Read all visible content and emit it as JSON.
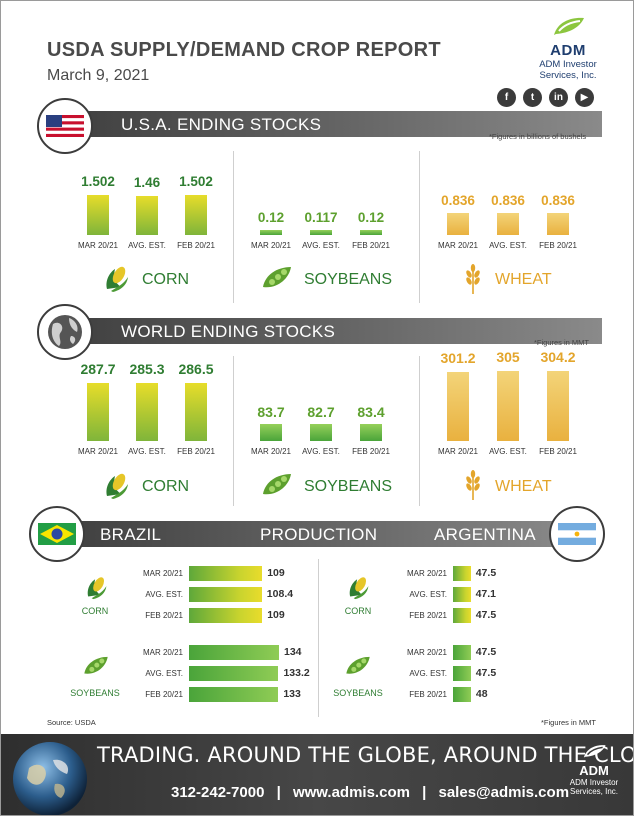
{
  "header": {
    "title": "USDA SUPPLY/DEMAND CROP REPORT",
    "date": "March 9, 2021",
    "logo_name": "ADM",
    "logo_sub_1": "ADM Investor",
    "logo_sub_2": "Services, Inc.",
    "social_icons": [
      "facebook-icon",
      "twitter-icon",
      "linkedin-icon",
      "youtube-icon"
    ],
    "social_letters": [
      "f",
      "t",
      "in",
      "▶"
    ]
  },
  "colors": {
    "corn": "#2f7d32",
    "soybeans": "#5da02e",
    "wheat": "#e3a52b",
    "banner": "#4a4a4a",
    "footer": "#3a3a3a"
  },
  "us_section": {
    "title": "U.S.A. ENDING STOCKS",
    "note": "*Figures in billions of bushels"
  },
  "world_section": {
    "title": "WORLD ENDING STOCKS",
    "note": "*Figures in MMT"
  },
  "production_section": {
    "left_label": "BRAZIL",
    "center_label": "PRODUCTION",
    "right_label": "ARGENTINA",
    "note": "*Figures in MMT"
  },
  "source": "Source: USDA",
  "chart_data": [
    {
      "type": "bar",
      "title": "U.S.A. ENDING STOCKS",
      "crop": "CORN",
      "categories": [
        "MAR 20/21",
        "AVG. EST.",
        "FEB 20/21"
      ],
      "values": [
        1.502,
        1.46,
        1.502
      ],
      "labels": [
        "1.502",
        "1.46",
        "1.502"
      ]
    },
    {
      "type": "bar",
      "title": "U.S.A. ENDING STOCKS",
      "crop": "SOYBEANS",
      "categories": [
        "MAR 20/21",
        "AVG. EST.",
        "FEB 20/21"
      ],
      "values": [
        0.12,
        0.117,
        0.12
      ],
      "labels": [
        "0.12",
        "0.117",
        "0.12"
      ]
    },
    {
      "type": "bar",
      "title": "U.S.A. ENDING STOCKS",
      "crop": "WHEAT",
      "categories": [
        "MAR 20/21",
        "AVG. EST.",
        "FEB 20/21"
      ],
      "values": [
        0.836,
        0.836,
        0.836
      ],
      "labels": [
        "0.836",
        "0.836",
        "0.836"
      ]
    },
    {
      "type": "bar",
      "title": "WORLD ENDING STOCKS",
      "crop": "CORN",
      "categories": [
        "MAR 20/21",
        "AVG. EST.",
        "FEB 20/21"
      ],
      "values": [
        287.7,
        285.3,
        286.5
      ],
      "labels": [
        "287.7",
        "285.3",
        "286.5"
      ]
    },
    {
      "type": "bar",
      "title": "WORLD ENDING STOCKS",
      "crop": "SOYBEANS",
      "categories": [
        "MAR 20/21",
        "AVG. EST.",
        "FEB 20/21"
      ],
      "values": [
        83.7,
        82.7,
        83.4
      ],
      "labels": [
        "83.7",
        "82.7",
        "83.4"
      ]
    },
    {
      "type": "bar",
      "title": "WORLD ENDING STOCKS",
      "crop": "WHEAT",
      "categories": [
        "MAR 20/21",
        "AVG. EST.",
        "FEB 20/21"
      ],
      "values": [
        301.2,
        305,
        304.2
      ],
      "labels": [
        "301.2",
        "305",
        "304.2"
      ]
    },
    {
      "type": "bar",
      "orientation": "horizontal",
      "title": "BRAZIL PRODUCTION",
      "crop": "CORN",
      "categories": [
        "MAR 20/21",
        "AVG. EST.",
        "FEB 20/21"
      ],
      "values": [
        109,
        108.4,
        109
      ],
      "labels": [
        "109",
        "108.4",
        "109"
      ]
    },
    {
      "type": "bar",
      "orientation": "horizontal",
      "title": "BRAZIL PRODUCTION",
      "crop": "SOYBEANS",
      "categories": [
        "MAR 20/21",
        "AVG. EST.",
        "FEB 20/21"
      ],
      "values": [
        134,
        133.2,
        133
      ],
      "labels": [
        "134",
        "133.2",
        "133"
      ]
    },
    {
      "type": "bar",
      "orientation": "horizontal",
      "title": "ARGENTINA PRODUCTION",
      "crop": "CORN",
      "categories": [
        "MAR 20/21",
        "AVG. EST.",
        "FEB 20/21"
      ],
      "values": [
        47.5,
        47.1,
        47.5
      ],
      "labels": [
        "47.5",
        "47.1",
        "47.5"
      ]
    },
    {
      "type": "bar",
      "orientation": "horizontal",
      "title": "ARGENTINA PRODUCTION",
      "crop": "SOYBEANS",
      "categories": [
        "MAR 20/21",
        "AVG. EST.",
        "FEB 20/21"
      ],
      "values": [
        47.5,
        47.5,
        48
      ],
      "labels": [
        "47.5",
        "47.5",
        "48"
      ]
    }
  ],
  "footer": {
    "slogan": "TRADING. AROUND THE GLOBE, AROUND THE CLOCK.",
    "phone": "312-242-7000",
    "sep": "|",
    "website": "www.admis.com",
    "email": "sales@admis.com",
    "logo_name": "ADM",
    "logo_sub_1": "ADM Investor",
    "logo_sub_2": "Services, Inc."
  }
}
